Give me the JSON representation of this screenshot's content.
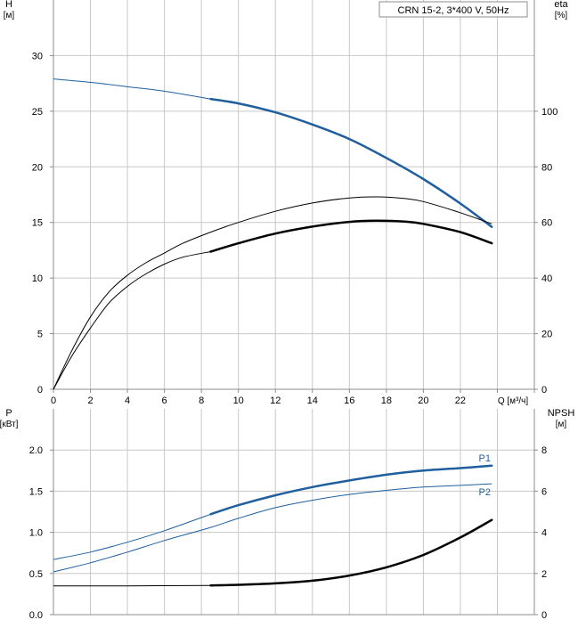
{
  "legend_label": "CRN 15-2, 3*400 V, 50Hz",
  "colors": {
    "blue": "#1f5f9e",
    "black": "#000000",
    "grid": "#c8c8c8",
    "frame": "#8c8c8c"
  },
  "chart_data": [
    {
      "type": "line",
      "id": "top",
      "x_axis": {
        "label": "Q [м³/ч]",
        "range": [
          0,
          26
        ],
        "ticks": [
          0,
          2,
          4,
          6,
          8,
          10,
          12,
          14,
          16,
          18,
          20,
          22
        ]
      },
      "y_left": {
        "label_top": "H",
        "label_bottom": "[м]",
        "range": [
          0,
          35
        ],
        "ticks": [
          0,
          5,
          10,
          15,
          20,
          25,
          30
        ]
      },
      "y_right": {
        "label_top": "eta",
        "label_bottom": "[%]",
        "range": [
          0,
          140
        ],
        "ticks": [
          0,
          20,
          40,
          60,
          80,
          100
        ]
      },
      "grid": true,
      "series": [
        {
          "key": "H",
          "axis": "left",
          "color": "#1f5f9e",
          "thin": [
            [
              0,
              27.9
            ],
            [
              2,
              27.6
            ],
            [
              4,
              27.2
            ],
            [
              6,
              26.8
            ],
            [
              8.5,
              26.1
            ]
          ],
          "thick": [
            [
              8.5,
              26.1
            ],
            [
              10,
              25.7
            ],
            [
              12,
              24.9
            ],
            [
              14,
              23.8
            ],
            [
              16,
              22.5
            ],
            [
              18,
              20.8
            ],
            [
              20,
              18.9
            ],
            [
              22,
              16.7
            ],
            [
              23.7,
              14.6
            ]
          ]
        },
        {
          "key": "eta_upper",
          "axis": "right",
          "color": "#000000",
          "thin": [
            [
              0,
              0
            ],
            [
              1,
              14
            ],
            [
              2,
              26
            ],
            [
              3,
              35
            ],
            [
              4,
              41
            ],
            [
              5,
              45.5
            ],
            [
              6,
              49
            ],
            [
              7,
              52.5
            ],
            [
              8.5,
              56.5
            ],
            [
              10,
              60
            ],
            [
              12,
              64
            ],
            [
              14,
              67
            ],
            [
              16,
              68.8
            ],
            [
              17.5,
              69.2
            ],
            [
              19,
              68.6
            ],
            [
              20,
              67.5
            ],
            [
              22,
              63.5
            ],
            [
              23.7,
              59.5
            ]
          ],
          "thick": []
        },
        {
          "key": "eta",
          "axis": "right",
          "color": "#000000",
          "thin": [
            [
              0,
              0
            ],
            [
              1,
              12
            ],
            [
              2,
              22
            ],
            [
              3,
              31
            ],
            [
              4,
              37
            ],
            [
              5,
              41.5
            ],
            [
              6,
              45
            ],
            [
              7,
              47.5
            ],
            [
              8.5,
              49.5
            ]
          ],
          "thick": [
            [
              8.5,
              49.5
            ],
            [
              10,
              52.5
            ],
            [
              12,
              56
            ],
            [
              14,
              58.5
            ],
            [
              16,
              60.2
            ],
            [
              17.5,
              60.6
            ],
            [
              19,
              60.3
            ],
            [
              20,
              59.5
            ],
            [
              22,
              56.5
            ],
            [
              23.7,
              52.5
            ]
          ]
        }
      ]
    },
    {
      "type": "line",
      "id": "bottom",
      "x_axis": {
        "range": [
          0,
          26
        ]
      },
      "y_left": {
        "label_top": "P",
        "label_bottom": "[кВт]",
        "range": [
          0,
          2.5
        ],
        "ticks": [
          "0.0",
          "0.5",
          "1.0",
          "1.5",
          "2.0"
        ]
      },
      "y_right": {
        "label_top": "NPSH",
        "label_bottom": "[м]",
        "range": [
          0,
          10
        ],
        "ticks": [
          0,
          2,
          4,
          6,
          8
        ]
      },
      "grid": true,
      "series": [
        {
          "key": "P1",
          "name": "P1",
          "axis": "left",
          "color": "#1f5f9e",
          "thin": [
            [
              0,
              0.67
            ],
            [
              2,
              0.76
            ],
            [
              4,
              0.88
            ],
            [
              6,
              1.02
            ],
            [
              8.5,
              1.22
            ]
          ],
          "thick": [
            [
              8.5,
              1.22
            ],
            [
              10,
              1.33
            ],
            [
              12,
              1.45
            ],
            [
              14,
              1.55
            ],
            [
              16,
              1.63
            ],
            [
              18,
              1.7
            ],
            [
              20,
              1.75
            ],
            [
              22,
              1.78
            ],
            [
              23.7,
              1.81
            ]
          ]
        },
        {
          "key": "P2",
          "name": "P2",
          "axis": "left",
          "color": "#1f5f9e",
          "thin": [
            [
              0,
              0.52
            ],
            [
              2,
              0.63
            ],
            [
              4,
              0.76
            ],
            [
              6,
              0.9
            ],
            [
              8.5,
              1.06
            ],
            [
              10,
              1.17
            ],
            [
              12,
              1.3
            ],
            [
              14,
              1.39
            ],
            [
              16,
              1.46
            ],
            [
              18,
              1.51
            ],
            [
              20,
              1.55
            ],
            [
              22,
              1.57
            ],
            [
              23.7,
              1.59
            ]
          ],
          "thick": []
        },
        {
          "key": "NPSH",
          "axis": "right",
          "color": "#000000",
          "thin": [
            [
              0,
              1.4
            ],
            [
              4,
              1.4
            ],
            [
              8.5,
              1.42
            ]
          ],
          "thick": [
            [
              8.5,
              1.42
            ],
            [
              10,
              1.45
            ],
            [
              12,
              1.52
            ],
            [
              14,
              1.65
            ],
            [
              16,
              1.9
            ],
            [
              18,
              2.3
            ],
            [
              20,
              2.9
            ],
            [
              22,
              3.75
            ],
            [
              23.7,
              4.6
            ]
          ]
        }
      ]
    }
  ]
}
